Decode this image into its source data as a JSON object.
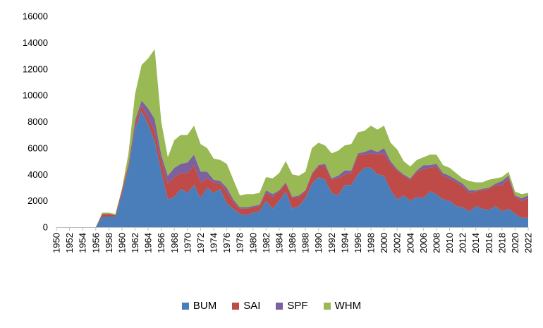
{
  "chart_data": {
    "type": "area",
    "stacked": true,
    "title": "",
    "xlabel": "",
    "ylabel": "",
    "xlim": [
      1950,
      2022
    ],
    "ylim": [
      0,
      16000
    ],
    "y_ticks": [
      0,
      2000,
      4000,
      6000,
      8000,
      10000,
      12000,
      14000,
      16000
    ],
    "x_ticks": [
      1950,
      1952,
      1954,
      1956,
      1958,
      1960,
      1962,
      1964,
      1966,
      1968,
      1970,
      1972,
      1974,
      1976,
      1978,
      1980,
      1982,
      1984,
      1986,
      1988,
      1990,
      1992,
      1994,
      1996,
      1998,
      2000,
      2002,
      2004,
      2006,
      2008,
      2010,
      2012,
      2014,
      2016,
      2018,
      2020,
      2022
    ],
    "grid": false,
    "legend_position": "bottom",
    "x": [
      1950,
      1951,
      1952,
      1953,
      1954,
      1955,
      1956,
      1957,
      1958,
      1959,
      1960,
      1961,
      1962,
      1963,
      1964,
      1965,
      1966,
      1967,
      1968,
      1969,
      1970,
      1971,
      1972,
      1973,
      1974,
      1975,
      1976,
      1977,
      1978,
      1979,
      1980,
      1981,
      1982,
      1983,
      1984,
      1985,
      1986,
      1987,
      1988,
      1989,
      1990,
      1991,
      1992,
      1993,
      1994,
      1995,
      1996,
      1997,
      1998,
      1999,
      2000,
      2001,
      2002,
      2003,
      2004,
      2005,
      2006,
      2007,
      2008,
      2009,
      2010,
      2011,
      2012,
      2013,
      2014,
      2015,
      2016,
      2017,
      2018,
      2019,
      2020,
      2021,
      2022
    ],
    "series": [
      {
        "name": "BUM",
        "color": "#4a7ebb",
        "values": [
          0,
          0,
          0,
          0,
          0,
          0,
          0,
          800,
          800,
          800,
          2500,
          4500,
          7500,
          8800,
          7800,
          6500,
          4200,
          2100,
          2300,
          2900,
          2600,
          3200,
          2200,
          3000,
          2600,
          2900,
          1800,
          1400,
          1000,
          900,
          1100,
          1200,
          2000,
          1400,
          2000,
          2700,
          1400,
          1600,
          2200,
          3300,
          3800,
          3600,
          2600,
          2400,
          3200,
          3200,
          4000,
          4500,
          4500,
          4000,
          3900,
          2800,
          2100,
          2400,
          2000,
          2300,
          2200,
          2700,
          2500,
          2100,
          2000,
          1600,
          1500,
          1200,
          1600,
          1400,
          1300,
          1600,
          1200,
          1400,
          1000,
          700,
          700
        ]
      },
      {
        "name": "SAI",
        "color": "#be4b48",
        "values": [
          0,
          0,
          0,
          0,
          0,
          0,
          0,
          200,
          200,
          100,
          300,
          300,
          400,
          400,
          500,
          800,
          900,
          1200,
          1500,
          1200,
          1500,
          1500,
          1200,
          700,
          800,
          400,
          900,
          500,
          400,
          500,
          400,
          400,
          600,
          900,
          700,
          600,
          800,
          700,
          500,
          700,
          800,
          1000,
          1000,
          1300,
          800,
          900,
          1500,
          1000,
          1100,
          1500,
          1700,
          2000,
          2200,
          1500,
          1600,
          1900,
          2200,
          1800,
          2100,
          1800,
          1700,
          1800,
          1600,
          1400,
          1100,
          1400,
          1600,
          1600,
          2000,
          2300,
          1300,
          1300,
          1500
        ]
      },
      {
        "name": "SPF",
        "color": "#7d60a0",
        "values": [
          0,
          0,
          0,
          0,
          0,
          0,
          0,
          0,
          0,
          0,
          0,
          0,
          200,
          400,
          700,
          900,
          400,
          600,
          700,
          700,
          800,
          800,
          800,
          500,
          200,
          200,
          300,
          200,
          100,
          100,
          100,
          100,
          200,
          200,
          100,
          100,
          100,
          100,
          100,
          100,
          100,
          200,
          100,
          200,
          300,
          200,
          100,
          200,
          300,
          200,
          400,
          200,
          100,
          100,
          100,
          100,
          300,
          200,
          200,
          200,
          200,
          200,
          200,
          200,
          100,
          100,
          100,
          100,
          300,
          200,
          100,
          200,
          200
        ]
      },
      {
        "name": "WHM",
        "color": "#98b954",
        "values": [
          0,
          0,
          0,
          0,
          0,
          0,
          0,
          100,
          100,
          100,
          100,
          800,
          2000,
          2700,
          3800,
          5300,
          2500,
          1400,
          2100,
          2200,
          2100,
          2200,
          2100,
          1800,
          1600,
          1600,
          1800,
          1500,
          900,
          1000,
          900,
          900,
          1000,
          1200,
          1300,
          1600,
          1700,
          1500,
          1400,
          1900,
          1700,
          1400,
          1900,
          1900,
          1900,
          2000,
          1600,
          1600,
          1800,
          1700,
          1700,
          1400,
          1500,
          1000,
          900,
          800,
          600,
          800,
          700,
          600,
          600,
          500,
          400,
          700,
          600,
          500,
          600,
          400,
          300,
          300,
          300,
          300,
          200
        ]
      }
    ]
  }
}
